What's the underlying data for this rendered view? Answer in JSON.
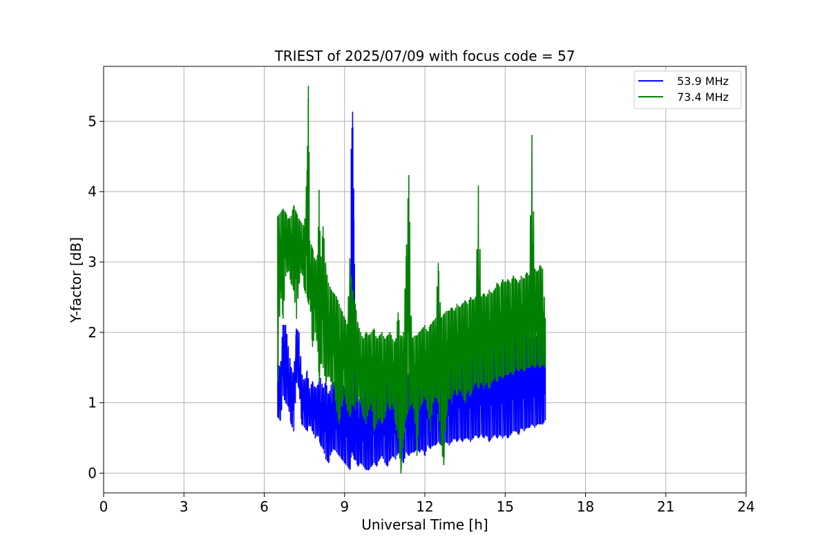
{
  "chart_data": {
    "type": "line",
    "title": "TRIEST of 2025/07/09 with focus code = 57",
    "xlabel": "Universal Time [h]",
    "ylabel": "Y-factor [dB]",
    "xlim": [
      0,
      24
    ],
    "ylim": [
      -0.28,
      5.78
    ],
    "xticks": [
      0,
      3,
      6,
      9,
      12,
      15,
      18,
      21,
      24
    ],
    "yticks": [
      0,
      1,
      2,
      3,
      4,
      5
    ],
    "grid": true,
    "legend_position": "top-right",
    "series": [
      {
        "name": "53.9 MHz",
        "color": "#0000ff",
        "x": [
          6.5,
          6.6,
          6.7,
          6.8,
          6.9,
          7.0,
          7.1,
          7.2,
          7.3,
          7.4,
          7.5,
          7.6,
          7.7,
          7.8,
          7.9,
          8.0,
          8.1,
          8.2,
          8.3,
          8.4,
          8.5,
          8.6,
          8.7,
          8.8,
          8.9,
          9.0,
          9.1,
          9.2,
          9.25,
          9.3,
          9.35,
          9.4,
          9.5,
          9.6,
          9.7,
          9.8,
          9.9,
          10.0,
          10.1,
          10.2,
          10.3,
          10.4,
          10.5,
          10.6,
          10.7,
          10.8,
          10.9,
          11.0,
          11.1,
          11.2,
          11.3,
          11.4,
          11.5,
          11.6,
          11.7,
          11.8,
          11.9,
          12.0,
          12.1,
          12.2,
          12.3,
          12.4,
          12.5,
          12.6,
          12.7,
          12.8,
          12.9,
          13.0,
          13.1,
          13.2,
          13.3,
          13.4,
          13.5,
          13.6,
          13.7,
          13.8,
          13.9,
          14.0,
          14.1,
          14.2,
          14.3,
          14.4,
          14.5,
          14.6,
          14.7,
          14.8,
          14.9,
          15.0,
          15.1,
          15.2,
          15.3,
          15.4,
          15.5,
          15.6,
          15.7,
          15.8,
          15.9,
          16.0,
          16.1,
          16.2,
          16.3,
          16.4,
          16.5
        ],
        "y_low": [
          0.8,
          0.75,
          1.1,
          1.0,
          0.95,
          0.7,
          0.6,
          1.3,
          1.2,
          0.7,
          0.65,
          0.6,
          0.7,
          0.6,
          0.5,
          0.55,
          0.4,
          0.35,
          0.2,
          0.15,
          0.3,
          0.35,
          0.3,
          0.25,
          0.2,
          0.15,
          0.1,
          0.05,
          0.3,
          0.3,
          0.2,
          0.2,
          0.1,
          0.15,
          0.1,
          0.05,
          0.05,
          0.1,
          0.15,
          0.1,
          0.2,
          0.25,
          0.15,
          0.1,
          0.2,
          0.25,
          0.2,
          0.3,
          0.2,
          0.15,
          0.3,
          0.25,
          0.3,
          0.3,
          0.35,
          0.3,
          0.35,
          0.25,
          0.4,
          0.35,
          0.4,
          0.4,
          0.45,
          0.4,
          0.4,
          0.45,
          0.4,
          0.45,
          0.5,
          0.45,
          0.5,
          0.45,
          0.5,
          0.5,
          0.45,
          0.5,
          0.55,
          0.5,
          0.55,
          0.5,
          0.55,
          0.45,
          0.5,
          0.55,
          0.5,
          0.55,
          0.5,
          0.55,
          0.5,
          0.55,
          0.6,
          0.6,
          0.55,
          0.65,
          0.6,
          0.65,
          0.65,
          0.7,
          0.65,
          0.7,
          0.7,
          0.7,
          0.75
        ],
        "y_high": [
          1.55,
          1.5,
          2.1,
          2.1,
          1.8,
          1.5,
          1.4,
          2.05,
          2.0,
          1.4,
          1.3,
          1.45,
          1.2,
          1.3,
          1.2,
          1.25,
          1.35,
          1.2,
          1.3,
          1.1,
          1.25,
          1.3,
          1.2,
          1.4,
          1.3,
          1.2,
          1.3,
          1.2,
          4.6,
          5.13,
          3.6,
          1.4,
          1.1,
          1.0,
          1.1,
          1.2,
          1.3,
          1.35,
          1.3,
          1.2,
          1.3,
          1.25,
          1.2,
          1.3,
          1.35,
          1.3,
          1.2,
          1.35,
          1.3,
          1.2,
          1.35,
          1.4,
          1.45,
          1.4,
          1.5,
          1.45,
          1.5,
          1.55,
          1.5,
          1.45,
          1.55,
          1.5,
          1.6,
          1.55,
          1.6,
          1.65,
          1.6,
          1.65,
          1.7,
          1.6,
          1.75,
          1.7,
          1.75,
          1.7,
          1.8,
          1.75,
          1.8,
          1.85,
          1.75,
          1.85,
          1.8,
          1.8,
          1.85,
          1.8,
          1.9,
          1.85,
          1.9,
          1.85,
          1.9,
          1.9,
          1.9,
          1.95,
          1.85,
          1.95,
          1.9,
          1.95,
          1.9,
          1.95,
          1.9,
          1.95,
          1.85,
          1.9,
          1.85
        ]
      },
      {
        "name": "73.4 MHz",
        "color": "#008000",
        "x": [
          6.5,
          6.6,
          6.7,
          6.8,
          6.9,
          7.0,
          7.1,
          7.2,
          7.3,
          7.4,
          7.5,
          7.6,
          7.65,
          7.7,
          7.8,
          7.9,
          8.0,
          8.05,
          8.1,
          8.2,
          8.3,
          8.4,
          8.5,
          8.6,
          8.7,
          8.8,
          8.9,
          9.0,
          9.1,
          9.2,
          9.3,
          9.4,
          9.5,
          9.6,
          9.7,
          9.8,
          9.9,
          10.0,
          10.1,
          10.2,
          10.3,
          10.4,
          10.5,
          10.6,
          10.7,
          10.8,
          10.9,
          11.0,
          11.1,
          11.2,
          11.3,
          11.4,
          11.5,
          11.6,
          11.7,
          11.8,
          11.9,
          12.0,
          12.1,
          12.2,
          12.3,
          12.4,
          12.5,
          12.6,
          12.7,
          12.8,
          12.9,
          13.0,
          13.1,
          13.2,
          13.3,
          13.4,
          13.5,
          13.6,
          13.7,
          13.8,
          13.9,
          14.0,
          14.1,
          14.2,
          14.3,
          14.4,
          14.5,
          14.6,
          14.7,
          14.8,
          14.9,
          15.0,
          15.1,
          15.2,
          15.3,
          15.4,
          15.5,
          15.6,
          15.7,
          15.8,
          15.9,
          16.0,
          16.1,
          16.2,
          16.3,
          16.4,
          16.5
        ],
        "y_low": [
          1.3,
          2.6,
          2.2,
          2.8,
          2.9,
          2.7,
          2.6,
          2.2,
          2.7,
          2.9,
          2.6,
          2.5,
          2.4,
          2.5,
          1.8,
          2.0,
          1.8,
          1.3,
          1.6,
          1.5,
          1.3,
          1.4,
          1.3,
          1.2,
          0.9,
          0.7,
          1.0,
          1.1,
          0.9,
          0.8,
          1.0,
          0.9,
          1.1,
          1.0,
          0.8,
          0.7,
          0.9,
          1.0,
          0.6,
          0.7,
          0.8,
          0.7,
          0.8,
          1.0,
          0.9,
          1.0,
          0.7,
          0.5,
          0.0,
          0.5,
          0.8,
          0.9,
          1.0,
          0.9,
          0.25,
          0.9,
          1.0,
          1.1,
          0.9,
          0.6,
          1.0,
          1.1,
          1.0,
          0.4,
          0.12,
          0.8,
          1.1,
          1.0,
          1.2,
          1.1,
          1.2,
          1.1,
          1.0,
          1.2,
          1.1,
          1.2,
          1.3,
          1.2,
          1.3,
          1.2,
          1.3,
          1.2,
          1.3,
          1.35,
          1.3,
          1.4,
          1.35,
          1.4,
          1.4,
          1.45,
          1.4,
          1.5,
          1.45,
          1.5,
          1.45,
          1.5,
          1.5,
          1.55,
          1.5,
          1.55,
          1.5,
          1.55,
          1.5
        ],
        "y_high": [
          3.65,
          3.7,
          3.75,
          3.7,
          3.6,
          3.65,
          3.8,
          3.7,
          3.6,
          3.55,
          3.5,
          4.3,
          5.5,
          3.3,
          3.2,
          3.0,
          3.1,
          4.02,
          3.0,
          3.5,
          2.9,
          2.7,
          2.6,
          2.55,
          2.5,
          2.4,
          2.3,
          2.2,
          2.1,
          3.05,
          2.6,
          2.4,
          2.1,
          2.0,
          1.9,
          2.0,
          1.95,
          2.0,
          2.05,
          1.9,
          1.95,
          2.0,
          1.9,
          1.95,
          2.0,
          1.9,
          1.85,
          2.28,
          1.9,
          2.0,
          3.08,
          4.23,
          1.9,
          1.95,
          1.95,
          2.0,
          2.05,
          2.1,
          2.0,
          2.1,
          2.15,
          2.2,
          2.98,
          2.2,
          2.25,
          2.3,
          2.3,
          2.35,
          2.3,
          2.4,
          2.35,
          2.4,
          2.45,
          2.4,
          2.5,
          2.45,
          2.5,
          4.08,
          2.5,
          2.55,
          2.5,
          2.6,
          2.55,
          2.6,
          2.7,
          2.65,
          2.75,
          2.7,
          2.75,
          2.7,
          2.8,
          2.75,
          2.7,
          2.8,
          2.75,
          2.85,
          2.8,
          4.8,
          2.9,
          2.85,
          2.95,
          2.9,
          2.2
        ]
      }
    ]
  }
}
